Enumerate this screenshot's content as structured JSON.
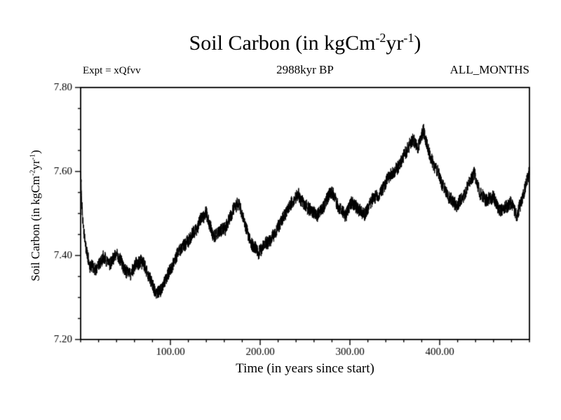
{
  "header": {
    "title": {
      "pre": "Soil Carbon (in kgCm",
      "sup1": "-2",
      "mid": "yr",
      "sup2": "-1",
      "post": ")"
    },
    "experiment_label": "Expt = xQfvv",
    "subtitle": "2988kyr BP",
    "months_label": "ALL_MONTHS"
  },
  "ylabel_parts": {
    "pre": "Soil Carbon (in kgCm",
    "sup1": "-2",
    "mid": "yr",
    "sup2": "-1",
    "post": ")"
  },
  "chart_data": {
    "type": "line",
    "title": "Soil Carbon (in kgCm^-2 yr^-1)",
    "subtitle": "2988kyr BP",
    "xlabel": "Time (in years since start)",
    "ylabel": "Soil Carbon (in kgCm^-2 yr^-1)",
    "xlim": [
      0,
      500
    ],
    "ylim": [
      7.2,
      7.8
    ],
    "x_ticks": [
      100,
      200,
      300,
      400
    ],
    "x_tick_labels": [
      "100.00",
      "200.00",
      "300.00",
      "400.00"
    ],
    "x_minor_step": 20,
    "y_ticks": [
      7.2,
      7.4,
      7.6,
      7.8
    ],
    "y_tick_labels": [
      "7.20",
      "7.40",
      "7.60",
      "7.80"
    ],
    "y_minor_step": 0.05,
    "grid": false,
    "legend": "none",
    "line_color": "#000000",
    "background_color": "#ffffff",
    "noise_amplitude": 0.016,
    "samples_per_year": 8,
    "series": [
      {
        "name": "soil_carbon",
        "keypoints_x": [
          0,
          2,
          5,
          10,
          18,
          25,
          32,
          40,
          48,
          55,
          62,
          70,
          78,
          85,
          90,
          97,
          105,
          112,
          120,
          128,
          135,
          140,
          148,
          155,
          162,
          170,
          176,
          183,
          190,
          198,
          205,
          212,
          220,
          228,
          235,
          242,
          250,
          258,
          264,
          272,
          280,
          287,
          295,
          302,
          310,
          318,
          325,
          332,
          340,
          348,
          355,
          362,
          370,
          376,
          382,
          388,
          395,
          402,
          410,
          418,
          425,
          432,
          438,
          445,
          452,
          460,
          468,
          474,
          480,
          486,
          492,
          500
        ],
        "keypoints_y": [
          7.6,
          7.5,
          7.43,
          7.38,
          7.37,
          7.4,
          7.38,
          7.4,
          7.37,
          7.36,
          7.38,
          7.38,
          7.34,
          7.31,
          7.32,
          7.36,
          7.39,
          7.42,
          7.44,
          7.46,
          7.49,
          7.5,
          7.45,
          7.46,
          7.47,
          7.51,
          7.52,
          7.47,
          7.43,
          7.41,
          7.43,
          7.44,
          7.47,
          7.5,
          7.53,
          7.55,
          7.52,
          7.5,
          7.49,
          7.52,
          7.55,
          7.52,
          7.5,
          7.52,
          7.51,
          7.5,
          7.53,
          7.54,
          7.57,
          7.6,
          7.62,
          7.65,
          7.68,
          7.66,
          7.7,
          7.65,
          7.61,
          7.57,
          7.54,
          7.52,
          7.54,
          7.57,
          7.6,
          7.55,
          7.53,
          7.54,
          7.5,
          7.52,
          7.53,
          7.5,
          7.54,
          7.6
        ]
      }
    ]
  }
}
